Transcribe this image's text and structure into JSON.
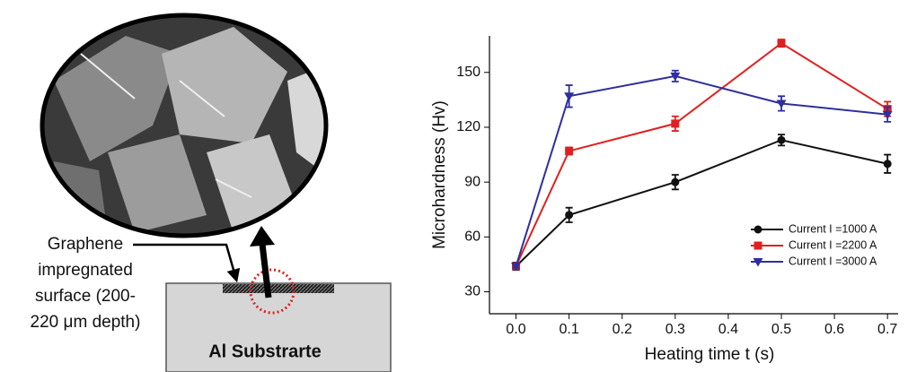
{
  "diagram": {
    "label_lines": [
      "Graphene",
      "impregnated",
      "surface (200-",
      "220 μm depth)"
    ],
    "substrate": "Al Substrarte"
  },
  "chart_data": {
    "type": "line",
    "xlabel": "Heating time t (s)",
    "ylabel": "Microhardness (Hv)",
    "x": [
      0.0,
      0.1,
      0.3,
      0.5,
      0.7
    ],
    "xlim": [
      -0.05,
      0.72
    ],
    "ylim": [
      18,
      170
    ],
    "xticks": [
      {
        "value": 0,
        "label": "0.0"
      },
      0.1,
      0.2,
      0.3,
      0.4,
      0.5,
      0.6,
      0.7
    ],
    "yticks": [
      30,
      60,
      90,
      120,
      150
    ],
    "legend": "lower right",
    "series": [
      {
        "name": "Current I =1000 A",
        "color": "#111111",
        "marker": "circle",
        "values": [
          44,
          72,
          90,
          113,
          100
        ],
        "errors": [
          2,
          4,
          4,
          3,
          5
        ]
      },
      {
        "name": "Current I =2200 A",
        "color": "#e02020",
        "marker": "square",
        "values": [
          44,
          107,
          122,
          166,
          130
        ],
        "errors": [
          1,
          2,
          4,
          2,
          4
        ]
      },
      {
        "name": "Current I =3000 A",
        "color": "#2e2e9e",
        "marker": "triangle-down",
        "values": [
          44,
          137,
          148,
          133,
          127
        ],
        "errors": [
          1,
          6,
          3,
          4,
          4
        ]
      }
    ]
  }
}
